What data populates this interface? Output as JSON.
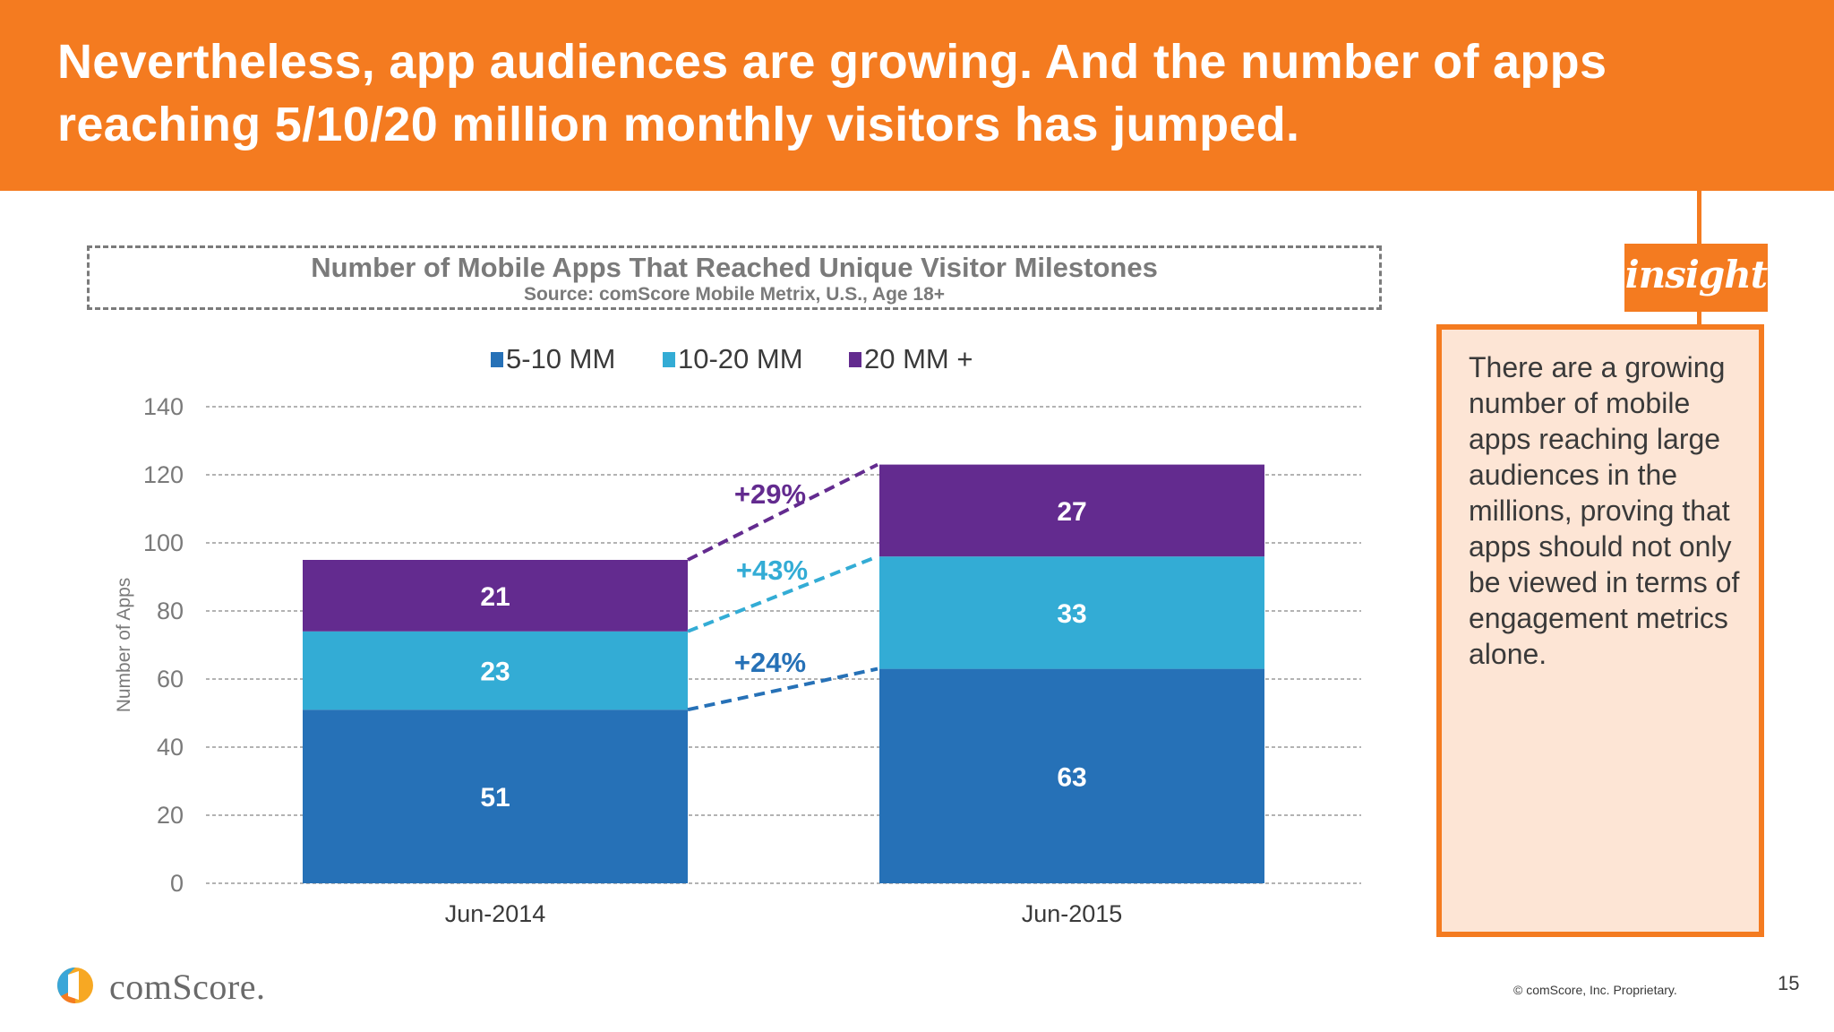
{
  "slide": {
    "title": "Nevertheless, app audiences are growing. And the number of apps reaching 5/10/20 million monthly visitors has jumped.",
    "insight_label": "insight",
    "insight_text": "There are a growing number of mobile apps reaching large audiences in the millions, proving that apps should not only be viewed in terms of engagement metrics alone.",
    "logo_text": "comScore.",
    "copyright": "© comScore, Inc. Proprietary.",
    "page_number": "15",
    "brand_color": "#f47b20"
  },
  "chart_data": {
    "type": "bar",
    "stacked": true,
    "title": "Number of Mobile Apps That Reached Unique Visitor Milestones",
    "subtitle": "Source: comScore Mobile Metrix, U.S., Age 18+",
    "xlabel": "",
    "ylabel": "Number of Apps",
    "ylim": [
      0,
      140
    ],
    "yticks": [
      0,
      20,
      40,
      60,
      80,
      100,
      120,
      140
    ],
    "grid": true,
    "legend_position": "top-center",
    "categories": [
      "Jun-2014",
      "Jun-2015"
    ],
    "series": [
      {
        "name": "5-10 MM",
        "color": "#2671b7",
        "values": [
          51,
          63
        ],
        "growth_label": "+24%"
      },
      {
        "name": "10-20 MM",
        "color": "#33acd5",
        "values": [
          23,
          33
        ],
        "growth_label": "+43%"
      },
      {
        "name": "20 MM +",
        "color": "#632b8f",
        "values": [
          21,
          27
        ],
        "growth_label": "+29%"
      }
    ],
    "annotations": [
      "+29%",
      "+43%",
      "+24%"
    ]
  }
}
